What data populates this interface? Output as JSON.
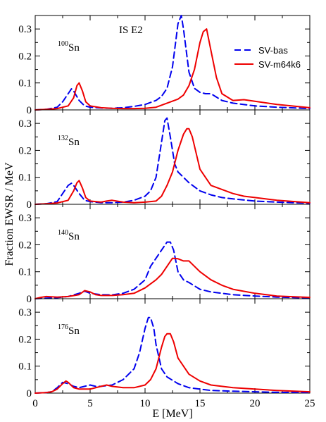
{
  "chart_data": {
    "type": "line",
    "xlabel": "E [MeV]",
    "ylabel": "Fraction EWSR / MeV",
    "xlim": [
      0,
      25
    ],
    "ylim": [
      0,
      0.35
    ],
    "x_ticks": [
      "0",
      "5",
      "10",
      "15",
      "20",
      "25"
    ],
    "y_ticks": [
      "0",
      "0.1",
      "0.2",
      "0.3"
    ],
    "annotation": "IS E2",
    "legend": {
      "placement": "top-right of first panel",
      "entries": [
        {
          "label": "SV-bas",
          "color": "#0000ee",
          "style": "dashed"
        },
        {
          "label": "SV-m64k6",
          "color": "#ee0000",
          "style": "solid"
        }
      ]
    },
    "panels": [
      {
        "nucleus_mass": "100",
        "nucleus_symbol": "Sn",
        "series": [
          {
            "name": "SV-bas",
            "x": [
              0,
              1,
              2,
              2.5,
              3,
              3.3,
              3.5,
              4,
              4.5,
              5,
              6,
              7,
              8,
              9,
              10,
              11,
              11.5,
              12,
              12.5,
              13,
              13.3,
              13.5,
              14,
              14.5,
              15,
              15.5,
              16,
              17,
              18,
              20,
              22,
              25
            ],
            "y": [
              0,
              0.002,
              0.01,
              0.03,
              0.06,
              0.078,
              0.07,
              0.035,
              0.015,
              0.01,
              0.007,
              0.006,
              0.008,
              0.013,
              0.02,
              0.035,
              0.05,
              0.08,
              0.16,
              0.32,
              0.35,
              0.3,
              0.14,
              0.08,
              0.065,
              0.06,
              0.06,
              0.035,
              0.025,
              0.015,
              0.01,
              0.005
            ]
          },
          {
            "name": "SV-m64k6",
            "x": [
              0,
              1,
              2,
              3,
              3.5,
              3.8,
              4,
              4.3,
              4.6,
              5,
              6,
              7,
              8,
              9,
              10,
              11,
              12,
              13,
              13.5,
              14,
              14.5,
              15,
              15.3,
              15.6,
              16,
              16.5,
              17,
              18,
              19,
              20,
              22,
              25
            ],
            "y": [
              0,
              0.002,
              0.005,
              0.015,
              0.045,
              0.09,
              0.1,
              0.07,
              0.03,
              0.015,
              0.008,
              0.006,
              0.005,
              0.005,
              0.006,
              0.01,
              0.025,
              0.04,
              0.055,
              0.09,
              0.15,
              0.25,
              0.29,
              0.3,
              0.22,
              0.12,
              0.06,
              0.035,
              0.038,
              0.032,
              0.02,
              0.008
            ]
          }
        ]
      },
      {
        "nucleus_mass": "132",
        "nucleus_symbol": "Sn",
        "series": [
          {
            "name": "SV-bas",
            "x": [
              0,
              1,
              2,
              2.5,
              3,
              3.3,
              3.5,
              4,
              4.5,
              5,
              6,
              7,
              8,
              9,
              10,
              10.5,
              11,
              11.5,
              11.8,
              12,
              12.3,
              12.7,
              13,
              14,
              15,
              16,
              17,
              18,
              20,
              22,
              25
            ],
            "y": [
              0,
              0.002,
              0.01,
              0.04,
              0.07,
              0.078,
              0.07,
              0.04,
              0.015,
              0.01,
              0.006,
              0.006,
              0.008,
              0.015,
              0.03,
              0.05,
              0.1,
              0.23,
              0.31,
              0.32,
              0.25,
              0.15,
              0.12,
              0.08,
              0.05,
              0.035,
              0.025,
              0.02,
              0.012,
              0.008,
              0.004
            ]
          },
          {
            "name": "SV-m64k6",
            "x": [
              0,
              1,
              2,
              3,
              3.5,
              3.8,
              4,
              4.3,
              4.6,
              5,
              6,
              6.5,
              7,
              8,
              9,
              10,
              11,
              11.5,
              12,
              12.5,
              13,
              13.5,
              13.8,
              14,
              14.3,
              15,
              16,
              17,
              18,
              19,
              20,
              22,
              25
            ],
            "y": [
              0,
              0.002,
              0.005,
              0.015,
              0.05,
              0.08,
              0.088,
              0.06,
              0.025,
              0.012,
              0.008,
              0.012,
              0.015,
              0.008,
              0.006,
              0.008,
              0.012,
              0.03,
              0.07,
              0.12,
              0.2,
              0.26,
              0.28,
              0.28,
              0.25,
              0.13,
              0.07,
              0.055,
              0.04,
              0.03,
              0.025,
              0.015,
              0.006
            ]
          }
        ]
      },
      {
        "nucleus_mass": "140",
        "nucleus_symbol": "Sn",
        "series": [
          {
            "name": "SV-bas",
            "x": [
              0,
              1,
              2,
              3,
              4,
              4.5,
              5,
              6,
              7,
              8,
              9,
              10,
              10.5,
              11,
              11.5,
              12,
              12.3,
              12.6,
              13,
              13.5,
              14,
              15,
              16,
              17,
              18,
              20,
              22,
              25
            ],
            "y": [
              0,
              0.002,
              0.004,
              0.008,
              0.02,
              0.028,
              0.02,
              0.015,
              0.014,
              0.02,
              0.035,
              0.07,
              0.12,
              0.15,
              0.18,
              0.21,
              0.21,
              0.18,
              0.1,
              0.07,
              0.06,
              0.035,
              0.025,
              0.02,
              0.015,
              0.01,
              0.006,
              0.003
            ]
          },
          {
            "name": "SV-m64k6",
            "x": [
              0,
              0.5,
              1,
              2,
              3,
              4,
              4.5,
              5,
              5.5,
              6,
              7,
              8,
              9,
              10,
              11,
              11.5,
              12,
              12.5,
              13,
              13.5,
              14,
              14.5,
              15,
              16,
              17,
              18,
              20,
              22,
              25
            ],
            "y": [
              0,
              0.005,
              0.008,
              0.006,
              0.008,
              0.015,
              0.03,
              0.025,
              0.015,
              0.012,
              0.012,
              0.015,
              0.02,
              0.04,
              0.07,
              0.09,
              0.12,
              0.15,
              0.148,
              0.14,
              0.14,
              0.12,
              0.1,
              0.07,
              0.05,
              0.035,
              0.02,
              0.01,
              0.005
            ]
          }
        ]
      },
      {
        "nucleus_mass": "176",
        "nucleus_symbol": "Sn",
        "series": [
          {
            "name": "SV-bas",
            "x": [
              0,
              1,
              1.5,
              2,
              2.5,
              3,
              3.5,
              4,
              5,
              5.5,
              6,
              7,
              8,
              9,
              9.5,
              10,
              10.3,
              10.5,
              10.8,
              11,
              11.5,
              12,
              13,
              14,
              15,
              16,
              18,
              20,
              22,
              25
            ],
            "y": [
              0,
              0.002,
              0.005,
              0.02,
              0.04,
              0.035,
              0.025,
              0.02,
              0.03,
              0.025,
              0.025,
              0.03,
              0.05,
              0.09,
              0.15,
              0.24,
              0.28,
              0.28,
              0.24,
              0.18,
              0.09,
              0.06,
              0.035,
              0.02,
              0.015,
              0.01,
              0.007,
              0.005,
              0.003,
              0.002
            ]
          },
          {
            "name": "SV-m64k6",
            "x": [
              0,
              1,
              1.5,
              2,
              2.5,
              2.8,
              3,
              3.5,
              4,
              5,
              6,
              6.5,
              7,
              8,
              9,
              10,
              10.5,
              11,
              11.5,
              11.8,
              12,
              12.3,
              12.6,
              13,
              14,
              15,
              16,
              18,
              20,
              22,
              25
            ],
            "y": [
              0,
              0.002,
              0.005,
              0.015,
              0.035,
              0.045,
              0.04,
              0.02,
              0.015,
              0.015,
              0.025,
              0.03,
              0.025,
              0.02,
              0.02,
              0.03,
              0.05,
              0.09,
              0.17,
              0.21,
              0.22,
              0.22,
              0.19,
              0.13,
              0.07,
              0.045,
              0.03,
              0.02,
              0.015,
              0.01,
              0.005
            ]
          }
        ]
      }
    ]
  }
}
